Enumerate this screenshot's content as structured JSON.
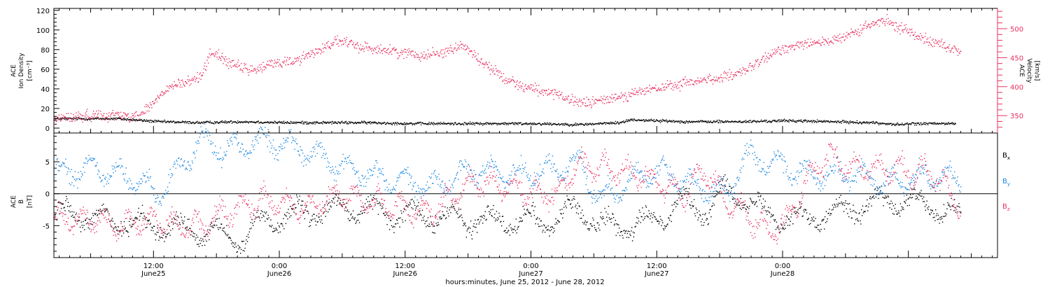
{
  "colors": {
    "black": "#000000",
    "pink": "#e8305f",
    "blue": "#1a86e0"
  },
  "chart_data": [
    {
      "type": "scatter",
      "panel": "top",
      "ylabel_left": [
        "ACE",
        "Ion Density",
        "[cm⁻³]"
      ],
      "ylabel_right": [
        "ACE",
        "Velocity",
        "[km/s]"
      ],
      "x_domain_hours": [
        0,
        90
      ],
      "ylim_left": [
        -5,
        122
      ],
      "ylim_right": [
        320,
        535
      ],
      "yticks_left": [
        0,
        20,
        40,
        60,
        80,
        100,
        120
      ],
      "yticks_right": [
        350,
        400,
        450,
        500
      ],
      "yticks_right_labels": [
        "350",
        "400",
        "450",
        "500"
      ],
      "series": [
        {
          "name": "Ion Density",
          "axis": "left",
          "color": "#000000",
          "x": [
            0,
            6,
            10,
            14,
            18,
            22,
            26,
            30,
            34,
            38,
            42,
            46,
            50,
            54,
            55,
            60,
            64,
            66,
            70,
            74,
            78,
            82,
            86,
            80.5
          ],
          "y": [
            10,
            10,
            7,
            6,
            7,
            6,
            6,
            6,
            5,
            5,
            5,
            5,
            4,
            6,
            9,
            7,
            7,
            7,
            8,
            7,
            6,
            5,
            5,
            4
          ]
        },
        {
          "name": "Velocity",
          "axis": "right",
          "color": "#e8305f",
          "x": [
            0,
            4,
            8,
            9,
            11,
            13,
            14,
            15,
            17,
            19,
            21,
            23,
            25,
            27,
            29,
            31,
            33,
            35,
            37,
            39,
            41,
            43,
            45,
            47,
            49,
            51,
            53,
            55,
            57,
            59,
            61,
            63,
            65,
            67,
            69,
            71,
            73,
            75,
            77,
            79,
            81,
            83,
            85,
            86.5
          ],
          "y": [
            345,
            352,
            350,
            365,
            400,
            410,
            420,
            462,
            438,
            428,
            442,
            445,
            462,
            480,
            470,
            465,
            460,
            455,
            460,
            472,
            440,
            415,
            400,
            392,
            378,
            372,
            380,
            388,
            396,
            402,
            410,
            415,
            420,
            440,
            462,
            475,
            478,
            482,
            500,
            515,
            500,
            485,
            470,
            460
          ]
        }
      ]
    },
    {
      "type": "scatter",
      "panel": "bottom",
      "ylabel_left": [
        "ACE",
        "B",
        "[nT]"
      ],
      "x_domain_hours": [
        0,
        90
      ],
      "ylim": [
        -10,
        9.5
      ],
      "yticks": [
        -5,
        0,
        5
      ],
      "yticks_labels": [
        "-5",
        "0",
        "5"
      ],
      "legend": [
        "Bx",
        "By",
        "Bz"
      ],
      "legend_placement": "right",
      "series": [
        {
          "name": "Bx",
          "color": "#000000",
          "x": [
            0,
            5,
            10,
            14,
            18,
            20,
            24,
            28,
            32,
            36,
            40,
            44,
            48,
            50,
            52,
            56,
            60,
            62,
            64,
            68,
            72,
            76,
            80,
            84,
            86.5
          ],
          "y": [
            -3,
            -4,
            -5,
            -6,
            -7,
            -4,
            -3,
            -2,
            -3,
            -3.5,
            -4,
            -4,
            -4,
            -2,
            -5,
            -5,
            -1,
            -3,
            1,
            -3,
            -4,
            -2,
            -1,
            -2,
            -4
          ]
        },
        {
          "name": "By",
          "color": "#1a86e0",
          "x": [
            0,
            4,
            8,
            10,
            12,
            14,
            16,
            20,
            24,
            28,
            30,
            34,
            36,
            40,
            44,
            48,
            50,
            52,
            56,
            58,
            60,
            64,
            66,
            68,
            72,
            76,
            80,
            84,
            86.5
          ],
          "y": [
            3,
            4,
            2,
            0,
            4,
            8.5,
            7,
            8.5,
            7,
            4,
            3,
            2,
            1,
            4,
            3,
            4,
            5,
            -1,
            3,
            3.5,
            2,
            0,
            6,
            5,
            3,
            3,
            2,
            3,
            2
          ]
        },
        {
          "name": "Bz",
          "color": "#e8305f",
          "x": [
            0,
            4,
            6,
            10,
            12,
            14,
            16,
            20,
            24,
            28,
            32,
            36,
            40,
            44,
            46,
            48,
            50,
            52,
            56,
            60,
            62,
            64,
            66,
            68,
            70,
            72,
            74,
            76,
            80,
            84,
            86.5
          ],
          "y": [
            -4,
            -4,
            -5,
            -4,
            -5,
            -5,
            -3,
            -1,
            -2,
            0,
            -2,
            -3,
            2,
            1,
            0,
            0,
            5,
            4,
            3,
            0,
            4,
            -1,
            -3,
            -6,
            -4,
            3,
            6,
            4,
            4,
            3,
            -2
          ]
        }
      ]
    }
  ],
  "x_axis": {
    "ticks": [
      {
        "h": 9.5,
        "time": "12:00",
        "date": "June25"
      },
      {
        "h": 21.5,
        "time": "0:00",
        "date": "June26"
      },
      {
        "h": 33.5,
        "time": "12:00",
        "date": "June26"
      },
      {
        "h": 45.5,
        "time": "0:00",
        "date": "June27"
      },
      {
        "h": 57.5,
        "time": "12:00",
        "date": "June27"
      },
      {
        "h": 69.5,
        "time": "0:00",
        "date": "June28"
      }
    ],
    "title": "hours:minutes, June 25, 2012 - June 28, 2012"
  },
  "legend_labels": {
    "bx": "B",
    "bx_sub": "x",
    "by": "B",
    "by_sub": "y",
    "bz": "B",
    "bz_sub": "z"
  }
}
